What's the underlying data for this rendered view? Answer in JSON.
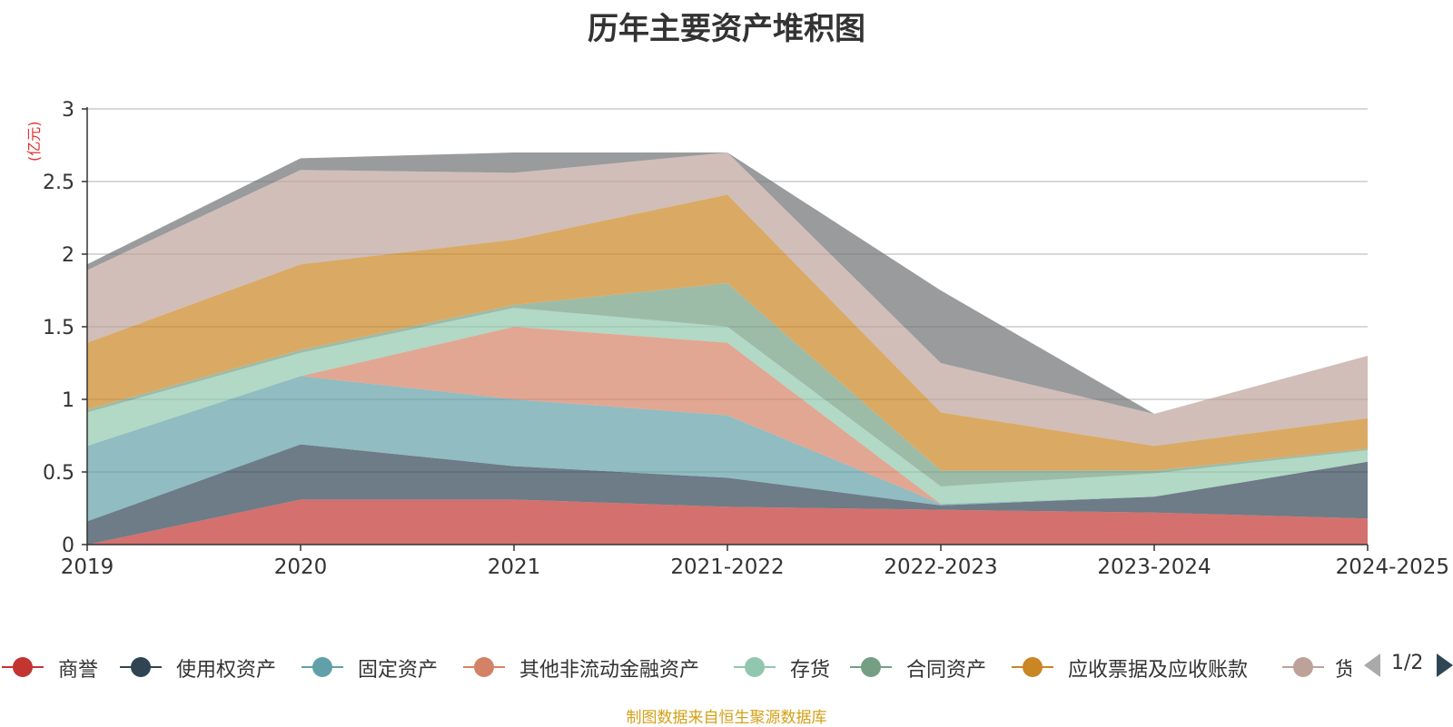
{
  "title": "历年主要资产堆积图",
  "unit": "(亿元)",
  "source": "制图数据来自恒生聚源数据库",
  "pager": {
    "text": "1/2"
  },
  "chart_data": {
    "type": "area",
    "stacked": true,
    "title": "历年主要资产堆积图",
    "ylabel": "(亿元)",
    "ylim": [
      0,
      3
    ],
    "yticks": [
      0,
      0.5,
      1,
      1.5,
      2,
      2.5,
      3
    ],
    "categories": [
      "2019",
      "2020",
      "2021",
      "2021-2022",
      "2022-2023",
      "2023-2024",
      "2024-2025"
    ],
    "grid": true,
    "legend_position": "bottom",
    "series": [
      {
        "name": "商誉",
        "color": "#c23531",
        "values": [
          0.0,
          0.31,
          0.31,
          0.26,
          0.24,
          0.22,
          0.18
        ]
      },
      {
        "name": "使用权资产",
        "color": "#2f4554",
        "values": [
          0.16,
          0.38,
          0.23,
          0.2,
          0.03,
          0.11,
          0.39
        ]
      },
      {
        "name": "固定资产",
        "color": "#61a0a8",
        "values": [
          0.52,
          0.47,
          0.46,
          0.43,
          0.01,
          0.0,
          0.0
        ]
      },
      {
        "name": "其他非流动金融资产",
        "color": "#d48265",
        "values": [
          0.0,
          0.0,
          0.5,
          0.5,
          0.0,
          0.0,
          0.0
        ]
      },
      {
        "name": "存货",
        "color": "#91c7ae",
        "values": [
          0.23,
          0.16,
          0.13,
          0.11,
          0.12,
          0.16,
          0.08
        ]
      },
      {
        "name": "合同资产",
        "color": "#749f83",
        "values": [
          0.02,
          0.02,
          0.02,
          0.3,
          0.11,
          0.02,
          0.01
        ]
      },
      {
        "name": "应收票据及应收账款",
        "color": "#ca8622",
        "values": [
          0.46,
          0.59,
          0.45,
          0.61,
          0.4,
          0.17,
          0.21
        ]
      },
      {
        "name": "货币资金",
        "color": "#bda29a",
        "values": [
          0.5,
          0.65,
          0.46,
          0.29,
          0.34,
          0.22,
          0.43
        ]
      },
      {
        "name": "",
        "color": "#6e7074",
        "values": [
          0.04,
          0.08,
          0.14,
          0.0,
          0.5,
          0.0,
          0.0
        ]
      }
    ]
  }
}
